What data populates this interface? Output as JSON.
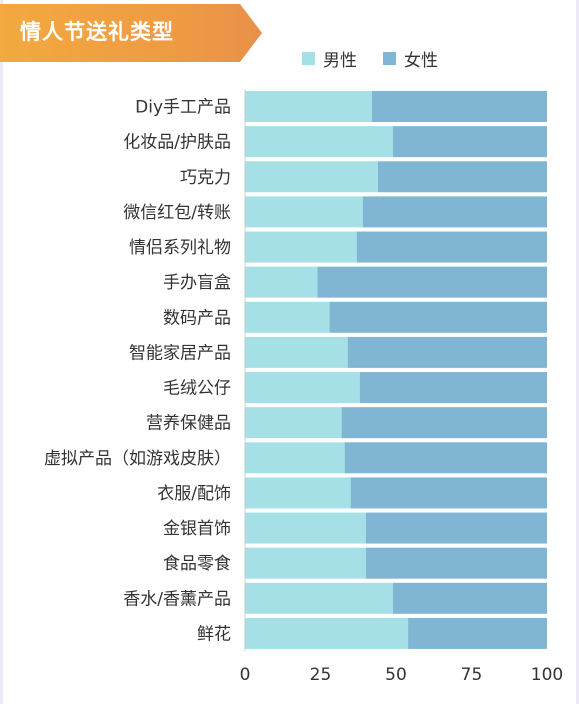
{
  "header": {
    "title": "情人节送礼类型"
  },
  "colors": {
    "male": "#a5e0e6",
    "female": "#80b6d4",
    "banner": "#f0a040",
    "text": "#333333"
  },
  "chart_data": {
    "type": "bar",
    "orientation": "horizontal",
    "stacked": true,
    "title": "",
    "xlabel": "",
    "ylabel": "",
    "xlim": [
      0,
      100
    ],
    "xticks": [
      0,
      25,
      50,
      75,
      100
    ],
    "legend_position": "top",
    "categories": [
      "Diy手工产品",
      "化妆品/护肤品",
      "巧克力",
      "微信红包/转账",
      "情侣系列礼物",
      "手办盲盒",
      "数码产品",
      "智能家居产品",
      "毛绒公仔",
      "营养保健品",
      "虚拟产品（如游戏皮肤）",
      "衣服/配饰",
      "金银首饰",
      "食品零食",
      "香水/香薰产品",
      "鲜花"
    ],
    "series": [
      {
        "name": "男性",
        "color": "#a5e0e6",
        "values": [
          42,
          49,
          44,
          39,
          37,
          24,
          28,
          34,
          38,
          32,
          33,
          35,
          40,
          40,
          49,
          54
        ]
      },
      {
        "name": "女性",
        "color": "#80b6d4",
        "values": [
          58,
          51,
          56,
          61,
          63,
          76,
          72,
          66,
          62,
          68,
          67,
          65,
          60,
          60,
          51,
          46
        ]
      }
    ]
  }
}
